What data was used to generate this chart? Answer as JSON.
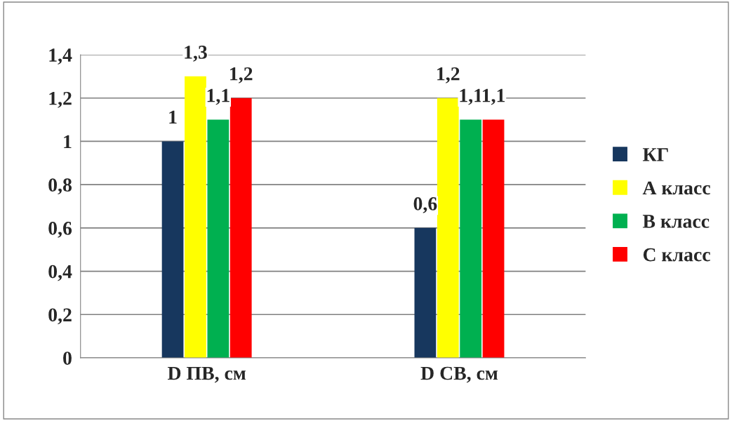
{
  "chart_data": {
    "type": "bar",
    "categories": [
      "D ПВ, см",
      "D СВ, см"
    ],
    "series": [
      {
        "name": "КГ",
        "color": "#17375e",
        "values": [
          1,
          0.6
        ],
        "value_labels": [
          "1",
          "0,6"
        ]
      },
      {
        "name": "А класс",
        "color": "#ffff00",
        "values": [
          1.3,
          1.2
        ],
        "value_labels": [
          "1,3",
          "1,2"
        ]
      },
      {
        "name": "В класс",
        "color": "#00b050",
        "values": [
          1.1,
          1.1
        ],
        "value_labels": [
          "1,1",
          "1,1"
        ]
      },
      {
        "name": "С класс",
        "color": "#ff0000",
        "values": [
          1.2,
          1.1
        ],
        "value_labels": [
          "1,2",
          "1,1"
        ]
      }
    ],
    "ylim": [
      0,
      1.4
    ],
    "yticks": [
      0,
      {
        "value": 0.2,
        "label": "0,2"
      },
      {
        "value": 0.4,
        "label": "0,4"
      },
      {
        "value": 0.6,
        "label": "0,6"
      },
      {
        "value": 0.8,
        "label": "0,8"
      },
      1,
      {
        "value": 1.2,
        "label": "1,2"
      },
      {
        "value": 1.4,
        "label": "1,4"
      }
    ],
    "grid": "y",
    "legend": "right"
  }
}
